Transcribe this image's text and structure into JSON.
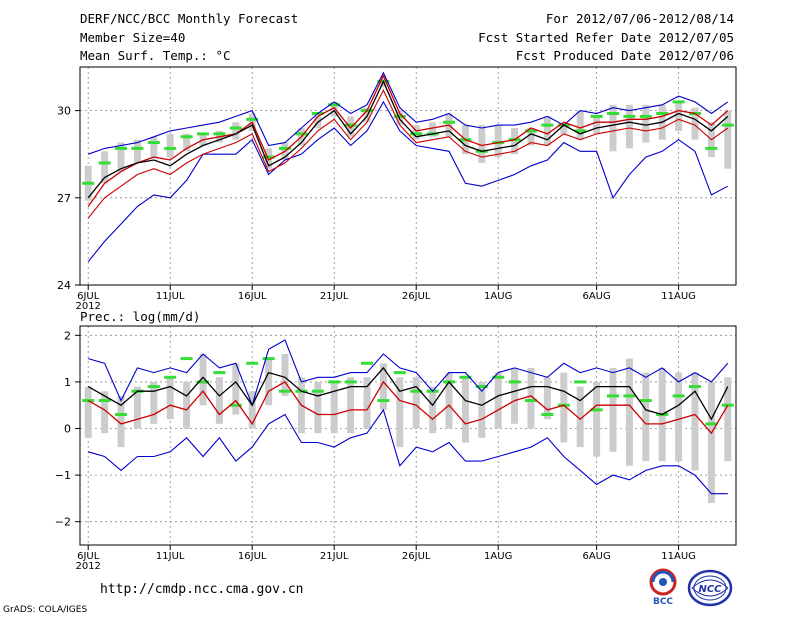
{
  "header": {
    "title": "DERF/NCC/BCC Monthly Forecast",
    "member_size": "Member Size=40",
    "variable": "Mean Surf. Temp.: °C",
    "period": "For 2012/07/06-2012/08/14",
    "fcst_started": "Fcst Started Refer Date 2012/07/05",
    "fcst_produced": "Fcst Produced Date 2012/07/06"
  },
  "footer": {
    "url": "http://cmdp.ncc.cma.gov.cn",
    "grads": "GrADS: COLA/IGES",
    "logo_bcc": "BCC",
    "logo_ncc": "NCC"
  },
  "colors": {
    "envelope": "#0000cc",
    "mean": "#000000",
    "median": "#cc0000",
    "box": "#cccccc",
    "marker": "#33dd33",
    "grid": "#888888"
  },
  "chart_data": [
    {
      "type": "line",
      "title": "Mean Surf. Temp.: °C",
      "x_tick_labels": [
        "6JUL",
        "11JUL",
        "16JUL",
        "21JUL",
        "26JUL",
        "1AUG",
        "6AUG",
        "11AUG"
      ],
      "x_sub_label": "2012",
      "xlim": [
        0.5,
        40.5
      ],
      "ylim": [
        24,
        31.5
      ],
      "y_ticks": [
        24,
        27,
        30
      ],
      "grid": true,
      "series": [
        {
          "name": "max",
          "values": [
            28.5,
            28.7,
            28.8,
            28.9,
            29.1,
            29.3,
            29.4,
            29.5,
            29.6,
            29.8,
            30.0,
            28.8,
            28.9,
            29.4,
            29.9,
            30.3,
            29.9,
            30.2,
            31.3,
            30.1,
            29.6,
            29.7,
            29.9,
            29.5,
            29.4,
            29.5,
            29.5,
            29.6,
            29.8,
            29.5,
            30.0,
            29.9,
            30.1,
            30.0,
            30.1,
            30.2,
            30.5,
            30.3,
            29.9,
            30.3
          ]
        },
        {
          "name": "mean",
          "values": [
            27.0,
            27.7,
            28.0,
            28.2,
            28.3,
            28.1,
            28.5,
            28.8,
            29.0,
            29.2,
            29.5,
            28.1,
            28.4,
            28.9,
            29.6,
            30.0,
            29.2,
            29.8,
            31.0,
            29.7,
            29.1,
            29.2,
            29.3,
            28.8,
            28.6,
            28.7,
            28.8,
            29.2,
            29.0,
            29.5,
            29.2,
            29.4,
            29.5,
            29.6,
            29.5,
            29.6,
            29.9,
            29.7,
            29.3,
            29.8
          ]
        },
        {
          "name": "median",
          "values": [
            26.7,
            27.5,
            27.9,
            28.2,
            28.4,
            28.3,
            28.7,
            29.0,
            29.1,
            29.2,
            29.6,
            28.3,
            28.6,
            29.1,
            29.8,
            30.1,
            29.4,
            30.0,
            31.2,
            29.9,
            29.3,
            29.4,
            29.5,
            29.0,
            28.8,
            28.9,
            29.0,
            29.4,
            29.2,
            29.6,
            29.4,
            29.6,
            29.6,
            29.7,
            29.7,
            29.8,
            30.0,
            29.9,
            29.5,
            30.0
          ]
        },
        {
          "name": "median_low",
          "values": [
            26.3,
            27.0,
            27.4,
            27.8,
            28.0,
            27.8,
            28.2,
            28.5,
            28.7,
            28.9,
            29.2,
            27.9,
            28.2,
            28.7,
            29.3,
            29.7,
            29.0,
            29.6,
            30.7,
            29.5,
            28.9,
            29.0,
            29.1,
            28.6,
            28.4,
            28.5,
            28.6,
            28.9,
            28.8,
            29.2,
            29.0,
            29.2,
            29.3,
            29.4,
            29.3,
            29.4,
            29.7,
            29.5,
            29.0,
            29.4
          ]
        },
        {
          "name": "min",
          "values": [
            24.8,
            25.5,
            26.1,
            26.7,
            27.1,
            27.0,
            27.6,
            28.5,
            28.5,
            28.5,
            29.0,
            27.8,
            28.3,
            28.5,
            29.0,
            29.4,
            28.8,
            29.3,
            30.3,
            29.3,
            28.8,
            28.7,
            28.6,
            27.5,
            27.4,
            27.6,
            27.8,
            28.1,
            28.3,
            28.9,
            28.6,
            28.6,
            27.0,
            27.8,
            28.4,
            28.6,
            29.0,
            28.6,
            27.1,
            27.4
          ]
        },
        {
          "name": "box_high",
          "values": [
            28.1,
            28.6,
            28.9,
            29.0,
            29.1,
            29.2,
            29.2,
            29.2,
            29.3,
            29.6,
            29.9,
            28.7,
            28.9,
            29.4,
            29.8,
            30.3,
            29.8,
            30.1,
            31.1,
            30.0,
            29.5,
            29.6,
            29.9,
            29.5,
            29.5,
            29.5,
            29.4,
            29.4,
            29.8,
            29.5,
            30.0,
            29.8,
            30.2,
            30.2,
            30.2,
            30.2,
            30.3,
            30.1,
            29.6,
            30.0
          ]
        },
        {
          "name": "box_low",
          "values": [
            26.9,
            27.5,
            27.9,
            28.2,
            28.4,
            28.4,
            28.6,
            28.8,
            28.9,
            29.0,
            29.3,
            28.0,
            28.3,
            28.8,
            29.4,
            29.8,
            29.1,
            29.6,
            30.8,
            29.5,
            29.0,
            29.1,
            29.1,
            28.5,
            28.2,
            28.4,
            28.5,
            28.8,
            28.8,
            29.2,
            29.0,
            29.2,
            28.6,
            28.7,
            28.9,
            29.0,
            29.3,
            29.0,
            28.4,
            28.0
          ]
        },
        {
          "name": "marker",
          "values": [
            27.5,
            28.2,
            28.7,
            28.7,
            28.9,
            28.7,
            29.1,
            29.2,
            29.2,
            29.4,
            29.7,
            28.4,
            28.7,
            29.2,
            29.9,
            30.2,
            29.5,
            30.0,
            31.0,
            29.8,
            29.2,
            29.2,
            29.6,
            29.0,
            28.6,
            28.9,
            29.0,
            29.3,
            29.5,
            29.5,
            29.3,
            29.8,
            29.9,
            29.8,
            29.8,
            29.9,
            30.3,
            29.9,
            28.7,
            29.5
          ]
        }
      ]
    },
    {
      "type": "line",
      "title": "Prec.: log(mm/d)",
      "x_tick_labels": [
        "6JUL",
        "11JUL",
        "16JUL",
        "21JUL",
        "26JUL",
        "1AUG",
        "6AUG",
        "11AUG"
      ],
      "x_sub_label": "2012",
      "xlim": [
        0.5,
        40.5
      ],
      "ylim": [
        -2.5,
        2.2
      ],
      "y_ticks": [
        -2,
        -1,
        0,
        1,
        2
      ],
      "grid": true,
      "series": [
        {
          "name": "max",
          "values": [
            1.5,
            1.4,
            0.6,
            1.3,
            1.2,
            1.3,
            1.2,
            1.6,
            1.3,
            1.4,
            0.5,
            1.7,
            1.9,
            1.0,
            1.1,
            1.1,
            1.2,
            1.2,
            1.6,
            1.3,
            1.2,
            0.8,
            1.2,
            1.2,
            0.8,
            1.2,
            1.3,
            1.2,
            1.1,
            1.4,
            1.2,
            1.3,
            1.2,
            1.3,
            1.1,
            1.3,
            1.0,
            1.2,
            1.0,
            1.4
          ]
        },
        {
          "name": "mean",
          "values": [
            0.9,
            0.7,
            0.5,
            0.8,
            0.8,
            0.9,
            0.7,
            1.1,
            0.7,
            1.0,
            0.5,
            1.2,
            1.1,
            0.8,
            0.7,
            0.8,
            0.9,
            0.9,
            1.3,
            0.8,
            0.9,
            0.5,
            1.0,
            0.6,
            0.5,
            0.7,
            0.8,
            0.9,
            0.9,
            0.8,
            0.6,
            0.9,
            0.9,
            0.9,
            0.4,
            0.3,
            0.5,
            0.8,
            0.2,
            0.9
          ]
        },
        {
          "name": "median",
          "values": [
            0.6,
            0.4,
            0.1,
            0.2,
            0.3,
            0.5,
            0.4,
            0.8,
            0.3,
            0.6,
            0.1,
            0.8,
            1.0,
            0.5,
            0.3,
            0.3,
            0.4,
            0.4,
            1.0,
            0.6,
            0.5,
            0.2,
            0.5,
            0.1,
            0.2,
            0.4,
            0.6,
            0.7,
            0.4,
            0.5,
            0.2,
            0.5,
            0.5,
            0.5,
            0.1,
            0.1,
            0.2,
            0.3,
            -0.1,
            0.5
          ]
        },
        {
          "name": "min",
          "values": [
            -0.5,
            -0.6,
            -0.9,
            -0.6,
            -0.6,
            -0.5,
            -0.2,
            -0.6,
            -0.2,
            -0.7,
            -0.4,
            0.1,
            0.3,
            -0.3,
            -0.3,
            -0.4,
            -0.2,
            -0.1,
            0.4,
            -0.8,
            -0.4,
            -0.5,
            -0.3,
            -0.7,
            -0.7,
            -0.6,
            -0.5,
            -0.4,
            -0.2,
            -0.6,
            -0.9,
            -1.2,
            -1.0,
            -1.1,
            -0.9,
            -0.8,
            -0.8,
            -1.0,
            -1.4,
            -1.4
          ]
        },
        {
          "name": "box_high",
          "values": [
            0.9,
            0.8,
            0.7,
            0.9,
            1.0,
            1.1,
            1.0,
            1.6,
            1.1,
            1.4,
            0.8,
            1.5,
            1.6,
            1.1,
            1.0,
            1.0,
            1.1,
            1.1,
            1.4,
            1.1,
            1.1,
            0.9,
            1.2,
            1.1,
            1.0,
            1.2,
            1.3,
            1.3,
            1.1,
            1.2,
            0.9,
            1.0,
            1.3,
            1.5,
            1.2,
            1.3,
            1.2,
            1.2,
            1.0,
            1.1
          ]
        },
        {
          "name": "box_low",
          "values": [
            -0.2,
            -0.1,
            -0.4,
            0.0,
            0.1,
            0.2,
            0.0,
            0.5,
            0.1,
            0.3,
            0.0,
            0.5,
            0.7,
            -0.1,
            -0.1,
            -0.1,
            -0.1,
            0.0,
            0.4,
            -0.4,
            0.0,
            -0.1,
            0.0,
            -0.3,
            -0.2,
            0.0,
            0.1,
            0.0,
            0.2,
            -0.3,
            -0.4,
            -0.6,
            -0.5,
            -0.8,
            -0.7,
            -0.7,
            -0.7,
            -0.9,
            -1.6,
            -0.7
          ]
        },
        {
          "name": "marker",
          "values": [
            0.6,
            0.6,
            0.3,
            0.8,
            0.9,
            1.1,
            1.5,
            1.0,
            1.2,
            0.5,
            1.4,
            1.5,
            0.8,
            0.8,
            0.8,
            1.0,
            1.0,
            1.4,
            0.6,
            1.2,
            0.8,
            0.8,
            1.0,
            1.1,
            0.9,
            1.1,
            1.0,
            0.6,
            0.3,
            0.5,
            1.0,
            0.4,
            0.7,
            0.7,
            0.6,
            0.3,
            0.7,
            0.9,
            0.1,
            0.5
          ]
        }
      ]
    }
  ]
}
